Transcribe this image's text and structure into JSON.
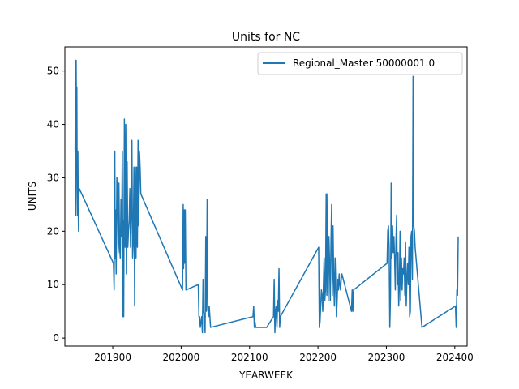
{
  "chart_data": {
    "type": "line",
    "title": "Units for NC",
    "xlabel": "YEARWEEK",
    "ylabel": "UNITS",
    "xlim": [
      201830,
      202418
    ],
    "ylim": [
      -1.5,
      54.5
    ],
    "xticks": [
      201900,
      202000,
      202100,
      202200,
      202300,
      202400
    ],
    "yticks": [
      0,
      10,
      20,
      30,
      40,
      50
    ],
    "grid": false,
    "legend_position": "top-right",
    "colors": {
      "series": "#1f77b4"
    },
    "series": [
      {
        "name": "Regional_Master 50000001.0",
        "points": [
          [
            201845,
            35
          ],
          [
            201845.5,
            52
          ],
          [
            201846,
            23
          ],
          [
            201846.5,
            52
          ],
          [
            201847,
            35
          ],
          [
            201847.5,
            47
          ],
          [
            201848,
            28
          ],
          [
            201848.5,
            23
          ],
          [
            201849,
            35
          ],
          [
            201849.5,
            24
          ],
          [
            201850,
            20
          ],
          [
            201850.5,
            27
          ],
          [
            201851,
            28
          ],
          [
            201901,
            14
          ],
          [
            201902,
            9
          ],
          [
            201903,
            35
          ],
          [
            201903.5,
            15
          ],
          [
            201904,
            24
          ],
          [
            201904.5,
            18
          ],
          [
            201905,
            12
          ],
          [
            201906,
            30
          ],
          [
            201907,
            27
          ],
          [
            201908,
            16
          ],
          [
            201909,
            29
          ],
          [
            201910,
            17
          ],
          [
            201911,
            15
          ],
          [
            201912,
            26
          ],
          [
            201913,
            19
          ],
          [
            201914,
            35
          ],
          [
            201915,
            4
          ],
          [
            201915.5,
            22
          ],
          [
            201916,
            4
          ],
          [
            201917,
            41
          ],
          [
            201918,
            17
          ],
          [
            201919,
            40
          ],
          [
            201920,
            12
          ],
          [
            201921,
            33
          ],
          [
            201922,
            17
          ],
          [
            201923,
            20
          ],
          [
            201924,
            22
          ],
          [
            201925,
            28
          ],
          [
            201926,
            17
          ],
          [
            201927,
            23
          ],
          [
            201928,
            37
          ],
          [
            201929,
            15
          ],
          [
            201930,
            18
          ],
          [
            201931,
            32
          ],
          [
            201932,
            6
          ],
          [
            201933,
            32
          ],
          [
            201934,
            15
          ],
          [
            201935,
            32
          ],
          [
            201936,
            17
          ],
          [
            201937,
            37
          ],
          [
            201938,
            21
          ],
          [
            201939,
            35
          ],
          [
            201940,
            32
          ],
          [
            201941,
            27
          ],
          [
            202002,
            9
          ],
          [
            202003,
            25
          ],
          [
            202003.5,
            13
          ],
          [
            202004,
            19
          ],
          [
            202004.5,
            24
          ],
          [
            202005,
            14
          ],
          [
            202006,
            24
          ],
          [
            202007,
            9
          ],
          [
            202025,
            10
          ],
          [
            202026,
            4
          ],
          [
            202027,
            4
          ],
          [
            202028,
            2
          ],
          [
            202029,
            3
          ],
          [
            202030,
            4
          ],
          [
            202031,
            1
          ],
          [
            202032,
            11
          ],
          [
            202033,
            5
          ],
          [
            202034,
            4
          ],
          [
            202035,
            1
          ],
          [
            202036,
            19
          ],
          [
            202037,
            5
          ],
          [
            202038,
            26
          ],
          [
            202039,
            6
          ],
          [
            202040,
            4
          ],
          [
            202041,
            6
          ],
          [
            202043,
            2
          ],
          [
            202105,
            4
          ],
          [
            202106,
            6
          ],
          [
            202107,
            2
          ],
          [
            202108,
            3
          ],
          [
            202109,
            2
          ],
          [
            202125,
            2
          ],
          [
            202135,
            4
          ],
          [
            202136,
            11
          ],
          [
            202137,
            1
          ],
          [
            202138,
            5
          ],
          [
            202139,
            6
          ],
          [
            202140,
            2
          ],
          [
            202141,
            7
          ],
          [
            202142,
            5
          ],
          [
            202143,
            13
          ],
          [
            202144,
            2
          ],
          [
            202145,
            4
          ],
          [
            202201,
            17
          ],
          [
            202202,
            2
          ],
          [
            202203,
            3
          ],
          [
            202204,
            6
          ],
          [
            202205,
            9
          ],
          [
            202206,
            8
          ],
          [
            202207,
            5
          ],
          [
            202208,
            10
          ],
          [
            202209,
            15
          ],
          [
            202210,
            7
          ],
          [
            202211,
            9
          ],
          [
            202212,
            27
          ],
          [
            202213,
            8
          ],
          [
            202214,
            27
          ],
          [
            202215,
            7
          ],
          [
            202216,
            19
          ],
          [
            202217,
            14
          ],
          [
            202218,
            7
          ],
          [
            202219,
            18
          ],
          [
            202220,
            25
          ],
          [
            202221,
            8
          ],
          [
            202222,
            21
          ],
          [
            202223,
            11
          ],
          [
            202224,
            6
          ],
          [
            202225,
            15
          ],
          [
            202226,
            10
          ],
          [
            202227,
            4
          ],
          [
            202228,
            7
          ],
          [
            202229,
            11
          ],
          [
            202230,
            9
          ],
          [
            202231,
            12
          ],
          [
            202232,
            10
          ],
          [
            202233,
            9
          ],
          [
            202234,
            11
          ],
          [
            202235,
            12
          ],
          [
            202249,
            5
          ],
          [
            202250,
            9
          ],
          [
            202251,
            5
          ],
          [
            202252,
            9
          ],
          [
            202301,
            14
          ],
          [
            202302,
            20
          ],
          [
            202303,
            21
          ],
          [
            202304,
            17
          ],
          [
            202305,
            2
          ],
          [
            202306,
            8
          ],
          [
            202307,
            29
          ],
          [
            202308,
            15
          ],
          [
            202309,
            21
          ],
          [
            202310,
            16
          ],
          [
            202311,
            19
          ],
          [
            202312,
            15
          ],
          [
            202313,
            9
          ],
          [
            202314,
            18
          ],
          [
            202315,
            23
          ],
          [
            202316,
            10
          ],
          [
            202317,
            16
          ],
          [
            202318,
            6
          ],
          [
            202319,
            10
          ],
          [
            202320,
            20
          ],
          [
            202321,
            7
          ],
          [
            202322,
            15
          ],
          [
            202323,
            9
          ],
          [
            202324,
            13
          ],
          [
            202325,
            12
          ],
          [
            202326,
            15
          ],
          [
            202327,
            8
          ],
          [
            202328,
            18
          ],
          [
            202329,
            6
          ],
          [
            202330,
            11
          ],
          [
            202331,
            14
          ],
          [
            202332,
            10
          ],
          [
            202333,
            17
          ],
          [
            202334,
            4
          ],
          [
            202335,
            5
          ],
          [
            202336,
            19
          ],
          [
            202337,
            20
          ],
          [
            202338,
            11
          ],
          [
            202339,
            49
          ],
          [
            202340,
            21
          ],
          [
            202341,
            20
          ],
          [
            202342,
            17
          ],
          [
            202352,
            2
          ],
          [
            202401,
            6
          ],
          [
            202402,
            2
          ],
          [
            202403,
            9
          ],
          [
            202404,
            8
          ],
          [
            202405,
            19
          ]
        ]
      }
    ]
  }
}
